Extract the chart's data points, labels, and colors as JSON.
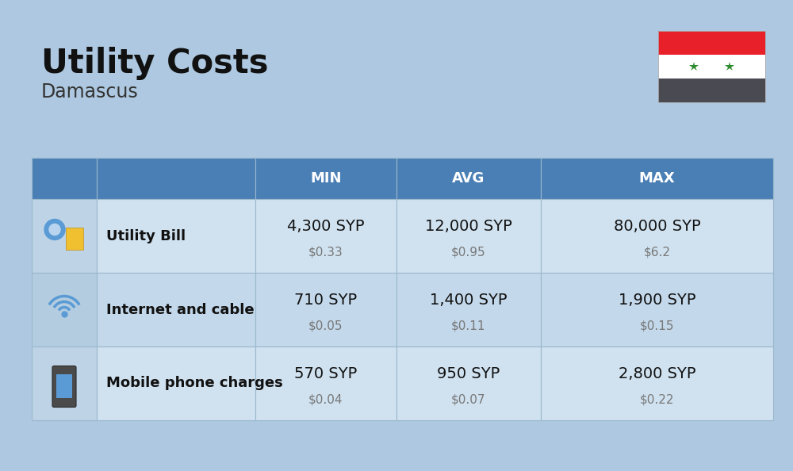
{
  "title": "Utility Costs",
  "subtitle": "Damascus",
  "background_color": "#adc8e0",
  "header_bg_color": "#4a7fb5",
  "header_text_color": "#ffffff",
  "row_colors": [
    "#d0e2f0",
    "#c3d8ea"
  ],
  "icon_bg_colors": [
    "#bed4e6",
    "#b3ccdf"
  ],
  "col_headers": [
    "MIN",
    "AVG",
    "MAX"
  ],
  "rows": [
    {
      "label": "Utility Bill",
      "min_syp": "4,300 SYP",
      "min_usd": "$0.33",
      "avg_syp": "12,000 SYP",
      "avg_usd": "$0.95",
      "max_syp": "80,000 SYP",
      "max_usd": "$6.2"
    },
    {
      "label": "Internet and cable",
      "min_syp": "710 SYP",
      "min_usd": "$0.05",
      "avg_syp": "1,400 SYP",
      "avg_usd": "$0.11",
      "max_syp": "1,900 SYP",
      "max_usd": "$0.15"
    },
    {
      "label": "Mobile phone charges",
      "min_syp": "570 SYP",
      "min_usd": "$0.04",
      "avg_syp": "950 SYP",
      "avg_usd": "$0.07",
      "max_syp": "2,800 SYP",
      "max_usd": "$0.22"
    }
  ],
  "title_fontsize": 30,
  "subtitle_fontsize": 17,
  "header_fontsize": 13,
  "label_fontsize": 13,
  "value_fontsize": 14,
  "usd_fontsize": 11,
  "flag_red": "#e8202a",
  "flag_white": "#ffffff",
  "flag_black": "#4a4a52",
  "flag_green": "#2e8b2e",
  "cell_edge_color": "#9ab8cc",
  "cell_edge_lw": 0.8
}
